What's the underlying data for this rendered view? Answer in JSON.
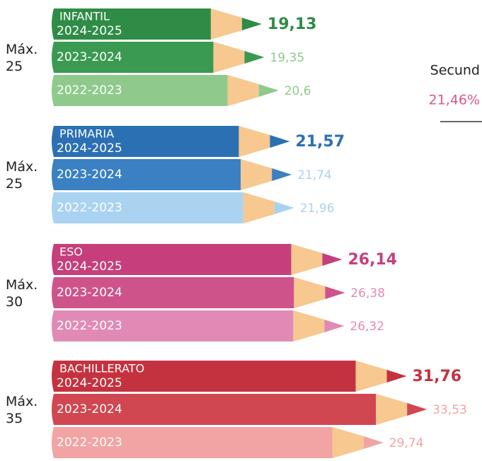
{
  "chart_data": [
    {
      "type": "bar",
      "title": "INFANTIL",
      "max_label": [
        "Máx.",
        "25"
      ],
      "categories": [
        "2024-2025",
        "2023-2024",
        "2022-2023"
      ],
      "values": [
        19.13,
        19.35,
        20.6
      ],
      "value_labels": [
        "19,13",
        "19,35",
        "20,6"
      ],
      "colors": [
        "#2f8c47",
        "#3b9a52",
        "#8fca8c"
      ]
    },
    {
      "type": "bar",
      "title": "PRIMARIA",
      "max_label": [
        "Máx.",
        "25"
      ],
      "categories": [
        "2024-2025",
        "2023-2024",
        "2022-2023"
      ],
      "values": [
        21.57,
        21.74,
        21.96
      ],
      "value_labels": [
        "21,57",
        "21,74",
        "21,96"
      ],
      "colors": [
        "#2b70b3",
        "#3a80c2",
        "#a9d3f1"
      ]
    },
    {
      "type": "bar",
      "title": "ESO",
      "max_label": [
        "Máx.",
        "30"
      ],
      "categories": [
        "2024-2025",
        "2023-2024",
        "2022-2023"
      ],
      "values": [
        26.14,
        26.38,
        26.32
      ],
      "value_labels": [
        "26,14",
        "26,38",
        "26,32"
      ],
      "colors": [
        "#c63f7c",
        "#cf538b",
        "#e28ab6"
      ]
    },
    {
      "type": "bar",
      "title": "BACHILLERATO",
      "max_label": [
        "Máx.",
        "35"
      ],
      "categories": [
        "2024-2025",
        "2023-2024",
        "2022-2023"
      ],
      "values": [
        31.76,
        33.53,
        29.74
      ],
      "value_labels": [
        "31,76",
        "33,53",
        "29,74"
      ],
      "colors": [
        "#c5323f",
        "#d04651",
        "#f2a3a3"
      ]
    }
  ],
  "side_note": {
    "text": "Secund",
    "value_label": "21,46%"
  }
}
